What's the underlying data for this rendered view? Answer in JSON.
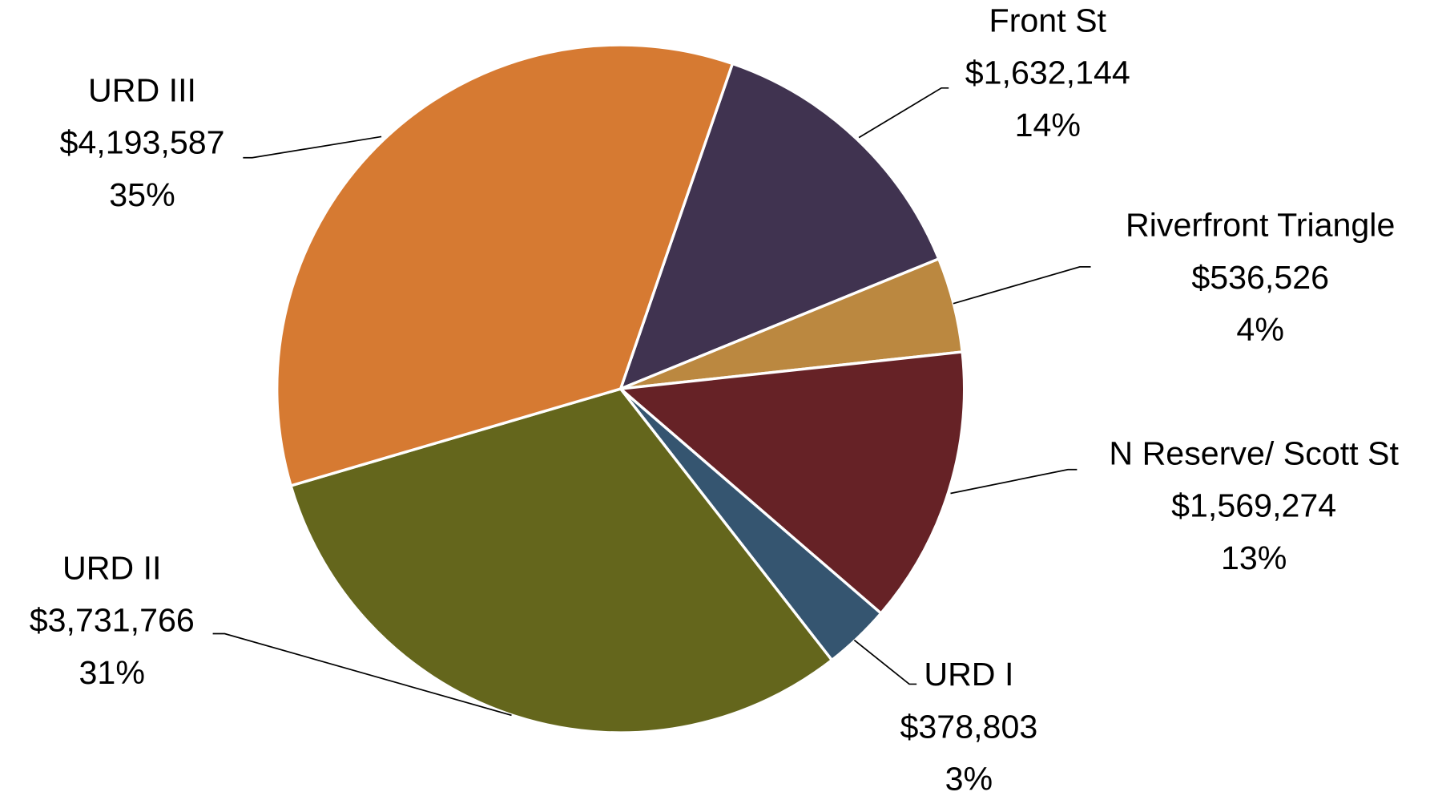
{
  "chart_data": {
    "type": "pie",
    "categories": [
      "Front St",
      "Riverfront Triangle",
      "N Reserve/ Scott St",
      "URD I",
      "URD II",
      "URD III"
    ],
    "values": [
      1632144,
      536526,
      1569274,
      378803,
      3731766,
      4193587
    ],
    "value_labels": [
      "$1,632,144",
      "$536,526",
      "$1,569,274",
      "$378,803",
      "$3,731,766",
      "$4,193,587"
    ],
    "percentages": [
      14,
      4,
      13,
      3,
      31,
      35
    ],
    "percentage_labels": [
      "14%",
      "4%",
      "13%",
      "3%",
      "31%",
      "35%"
    ],
    "colors": [
      "#403350",
      "#bb8840",
      "#662226",
      "#355570",
      "#64661c",
      "#d67a32"
    ]
  }
}
